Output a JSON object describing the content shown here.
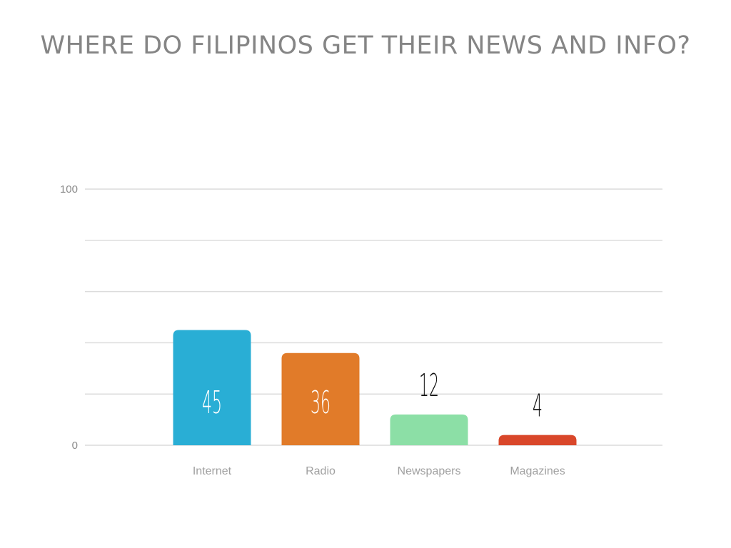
{
  "chart_data": {
    "type": "bar",
    "title": "WHERE DO FILIPINOS GET THEIR NEWS AND INFO?",
    "categories": [
      "Internet",
      "Radio",
      "Newspapers",
      "Magazines"
    ],
    "values": [
      45,
      36,
      12,
      4
    ],
    "colors": [
      "#29AED5",
      "#E17B29",
      "#8CDFA6",
      "#D9472A"
    ],
    "xlabel": "",
    "ylabel": "",
    "ylim": [
      0,
      100
    ],
    "yticks_labeled": [
      "0",
      "100"
    ],
    "gridlines": [
      0,
      20,
      40,
      60,
      80,
      100
    ],
    "grid": true,
    "legend": "none",
    "data_labels": [
      "45",
      "36",
      "12",
      "4"
    ]
  }
}
